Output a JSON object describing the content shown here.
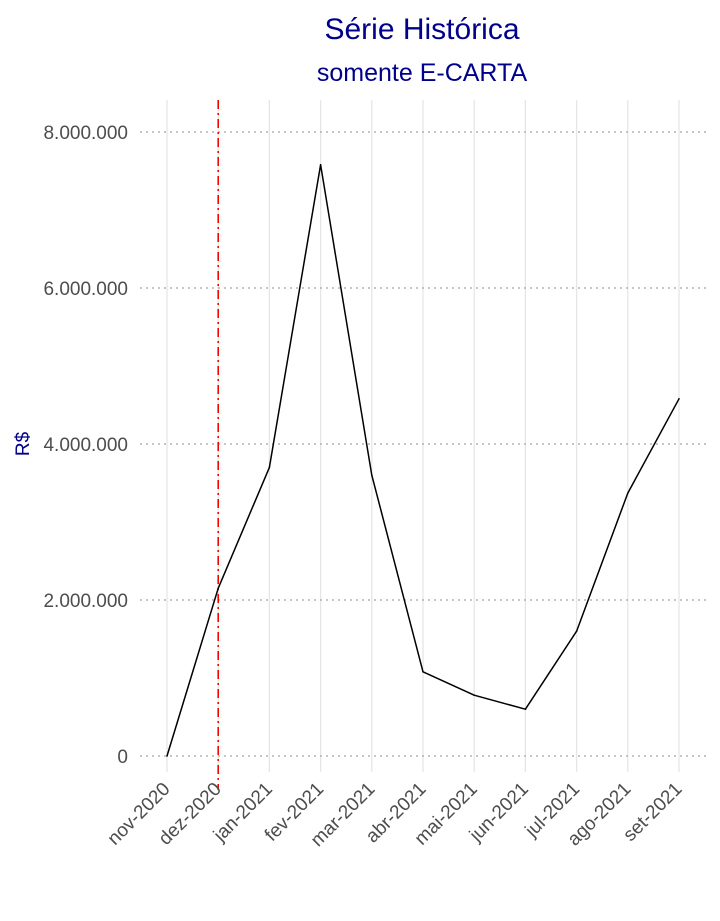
{
  "chart_data": {
    "type": "line",
    "title": "Série Histórica",
    "subtitle": "somente E-CARTA",
    "xlabel": "",
    "ylabel": "R$",
    "categories": [
      "nov-2020",
      "dez-2020",
      "jan-2021",
      "fev-2021",
      "mar-2021",
      "abr-2021",
      "mai-2021",
      "jun-2021",
      "jul-2021",
      "ago-2021",
      "set-2021"
    ],
    "series": [
      {
        "values": [
          0,
          2150000,
          3700000,
          7580000,
          3600000,
          1080000,
          780000,
          600000,
          1600000,
          3370000,
          4580000
        ]
      }
    ],
    "ylim": [
      0,
      8000000
    ],
    "yticks": [
      0,
      2000000,
      4000000,
      6000000,
      8000000
    ],
    "ytick_labels": [
      "0",
      "2.000.000",
      "4.000.000",
      "6.000.000",
      "8.000.000"
    ],
    "reference_line": {
      "x": "dez-2020",
      "style": "dash-dot"
    },
    "grid": true,
    "colors": {
      "line": "#000000",
      "reference": "#ff0000",
      "title": "#00008b",
      "grid_x": "#e6e6e6",
      "grid_y": "#b3b3b3"
    }
  }
}
